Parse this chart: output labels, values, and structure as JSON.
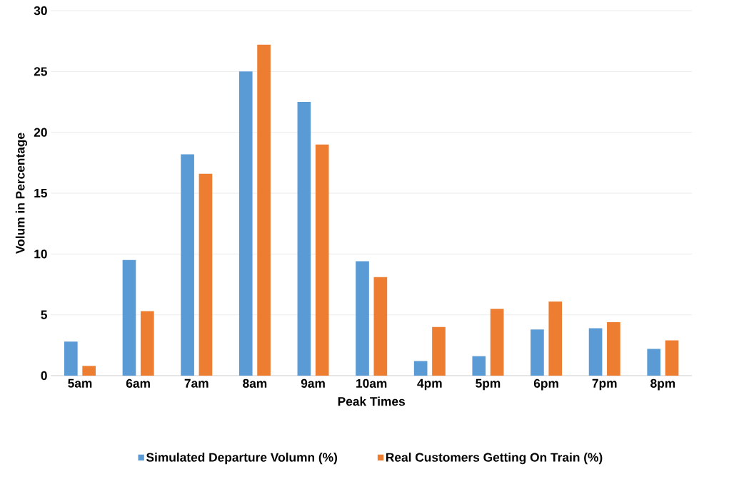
{
  "chart_data": {
    "type": "bar",
    "xlabel": "Peak Times",
    "ylabel": "Volum in Percentage",
    "categories": [
      "5am",
      "6am",
      "7am",
      "8am",
      "9am",
      "10am",
      "4pm",
      "5pm",
      "6pm",
      "7pm",
      "8pm"
    ],
    "series": [
      {
        "name": "Simulated Departure Volumn (%)",
        "color": "#5b9bd5",
        "values": [
          2.8,
          9.5,
          18.2,
          25.0,
          22.5,
          9.4,
          1.2,
          1.6,
          3.8,
          3.9,
          2.2
        ]
      },
      {
        "name": "Real Customers Getting On Train (%)",
        "color": "#ed7d31",
        "values": [
          0.8,
          5.3,
          16.6,
          27.2,
          19.0,
          8.1,
          4.0,
          5.5,
          6.1,
          4.4,
          2.9
        ]
      }
    ],
    "ylim": [
      0,
      30
    ],
    "yticks": [
      0,
      5,
      10,
      15,
      20,
      25,
      30
    ],
    "grid": "y",
    "legend": "bottom"
  }
}
